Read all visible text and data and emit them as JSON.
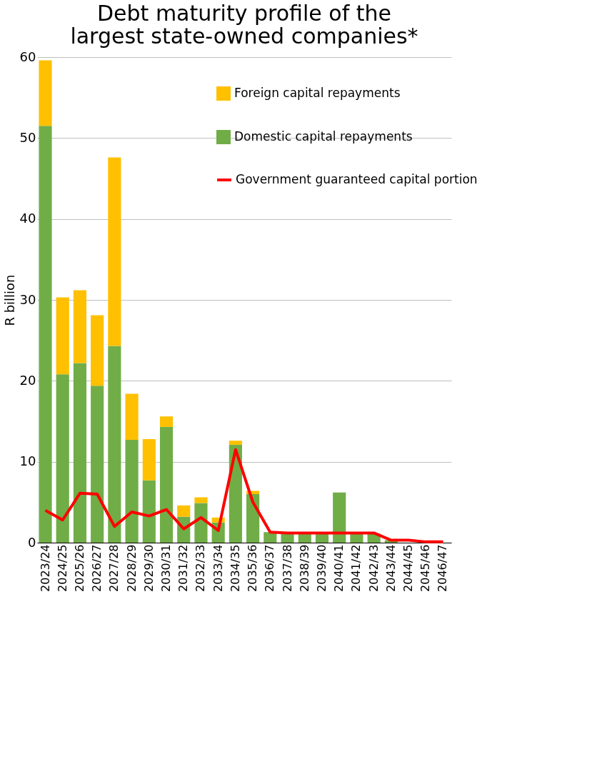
{
  "chart_data": {
    "type": "bar",
    "stacked": true,
    "title": "Debt maturity profile of the largest state-owned companies*",
    "ylabel": "R billion",
    "categories": [
      "2023/24",
      "2024/25",
      "2025/26",
      "2026/27",
      "2027/28",
      "2028/29",
      "2029/30",
      "2030/31",
      "2031/32",
      "2032/33",
      "2033/34",
      "2034/35",
      "2035/36",
      "2036/37",
      "2037/38",
      "2038/39",
      "2039/40",
      "2040/41",
      "2041/42",
      "2042/43",
      "2043/44",
      "2044/45",
      "2045/46",
      "2046/47"
    ],
    "series": [
      {
        "name": "Domestic capital repayments",
        "color": "#70ad47",
        "values": [
          51.5,
          20.8,
          22.2,
          19.4,
          24.3,
          12.7,
          7.7,
          14.3,
          3.2,
          4.9,
          2.5,
          12.1,
          6.0,
          1.3,
          1.2,
          1.2,
          1.2,
          6.2,
          1.2,
          1.1,
          0.3,
          null,
          0,
          0
        ]
      },
      {
        "name": "Foreign capital repayments",
        "color": "#ffc000",
        "values": [
          8.1,
          9.5,
          9.0,
          8.7,
          23.3,
          5.7,
          5.1,
          1.3,
          1.4,
          0.7,
          0.6,
          0.5,
          0.4,
          null,
          0,
          0,
          0,
          0,
          0,
          null,
          0,
          0,
          0,
          0
        ]
      },
      {
        "name": "Government guaranteed capital portion",
        "type": "line",
        "color": "#ff0000",
        "values": [
          4.0,
          2.8,
          6.1,
          6.0,
          2.0,
          3.8,
          3.3,
          4.1,
          1.7,
          3.1,
          1.5,
          11.5,
          5.0,
          1.3,
          1.2,
          1.2,
          1.2,
          1.2,
          1.2,
          1.2,
          0.3,
          0.3,
          0.1,
          0.1
        ]
      }
    ],
    "ylim": [
      0,
      60
    ],
    "yticks": [
      0,
      10,
      20,
      30,
      40,
      50,
      60
    ],
    "grid": "y",
    "legend": "top right"
  }
}
